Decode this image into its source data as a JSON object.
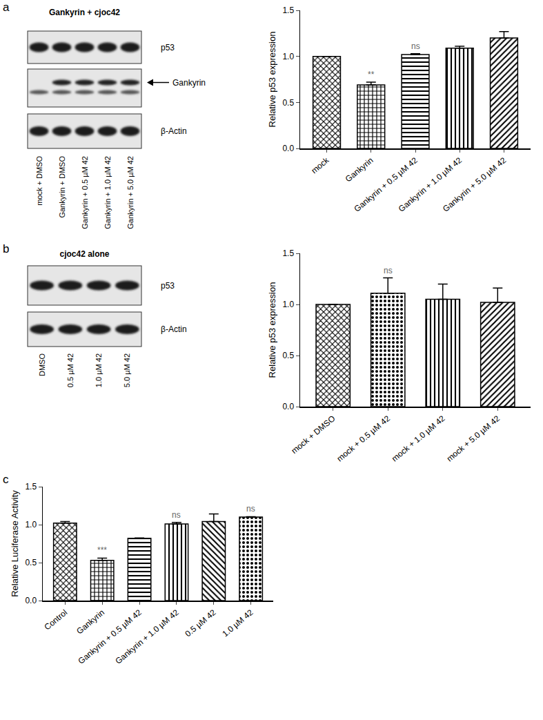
{
  "chart_data": [
    {
      "type": "bar",
      "panel": "a",
      "categories": [
        "mock",
        "Gankyrin",
        "Gankyrin + 0.5 µM 42",
        "Gankyrin + 1.0 µM 42",
        "Gankyrin + 5.0 µM 42"
      ],
      "values": [
        1.0,
        0.69,
        1.02,
        1.09,
        1.2
      ],
      "errors": [
        0,
        0.03,
        0.01,
        0.02,
        0.07
      ],
      "color": "#000000",
      "y_label": "Relative p53 expression",
      "ylim": [
        0,
        1.5
      ],
      "yticks": [
        {
          "value": 0,
          "label": "0.0"
        },
        {
          "value": 0.5,
          "label": "0.5"
        },
        {
          "value": 1,
          "label": "1.0"
        },
        {
          "value": 1.5,
          "label": "1.5"
        }
      ],
      "grid": false,
      "annotations": [
        {
          "text": "**",
          "category": "Gankyrin"
        },
        {
          "text": "ns",
          "category": "Gankyrin + 0.5 µM 42"
        }
      ]
    },
    {
      "type": "bar",
      "panel": "b",
      "categories": [
        "mock + DMSO",
        "mock + 0.5 µM 42",
        "mock + 1.0 µM 42",
        "mock + 5.0 µM 42"
      ],
      "values": [
        1.0,
        1.11,
        1.05,
        1.02
      ],
      "errors": [
        0,
        0.15,
        0.15,
        0.14
      ],
      "color": "#000000",
      "y_label": "Relative p53 expression",
      "ylim": [
        0,
        1.5
      ],
      "yticks": [
        {
          "value": 0,
          "label": "0.0"
        },
        {
          "value": 0.5,
          "label": "0.5"
        },
        {
          "value": 1,
          "label": "1.0"
        },
        {
          "value": 1.5,
          "label": "1.5"
        }
      ],
      "grid": false,
      "annotations": [
        {
          "text": "ns",
          "category": "mock + 0.5 µM 42"
        }
      ]
    },
    {
      "type": "bar",
      "panel": "c",
      "categories": [
        "Control",
        "Gankyrin",
        "Gankyrin + 0.5 µM 42",
        "Gankyrin + 1.0 µM 42",
        "0.5 µM 42",
        "1.0 µM 42"
      ],
      "values": [
        1.02,
        0.53,
        0.82,
        1.01,
        1.04,
        1.1
      ],
      "errors": [
        0.02,
        0.03,
        0.005,
        0.02,
        0.1,
        0.005
      ],
      "color": "#000000",
      "y_label": "Relative Luciferase Activity",
      "ylim": [
        0,
        1.5
      ],
      "yticks": [
        {
          "value": 0,
          "label": "0.0"
        },
        {
          "value": 0.5,
          "label": "0.5"
        },
        {
          "value": 1,
          "label": "1.0"
        },
        {
          "value": 1.5,
          "label": "1.5"
        }
      ],
      "grid": false,
      "annotations": [
        {
          "text": "***",
          "category": "Gankyrin"
        },
        {
          "text": "ns",
          "category": "Gankyrin + 1.0 µM 42"
        },
        {
          "text": "ns",
          "category": "1.0 µM 42"
        }
      ]
    }
  ],
  "blots": [
    {
      "panel": "a",
      "title": "Gankyrin + cjoc42",
      "rows": [
        "p53",
        "Gankyrin",
        "β-Actin"
      ],
      "arrow_row": "Gankyrin",
      "lanes": [
        "mock + DMSO",
        "Gankyrin + DMSO",
        "Gankyrin + 0.5 µM 42",
        "Gankyrin + 1.0 µM 42",
        "Gankyrin + 5.0 µM 42"
      ]
    },
    {
      "panel": "b",
      "title": "cjoc42 alone",
      "rows": [
        "p53",
        "β-Actin"
      ],
      "lanes": [
        "DMSO",
        "0.5 µM 42",
        "1.0 µM 42",
        "5.0 µM 42"
      ]
    }
  ]
}
